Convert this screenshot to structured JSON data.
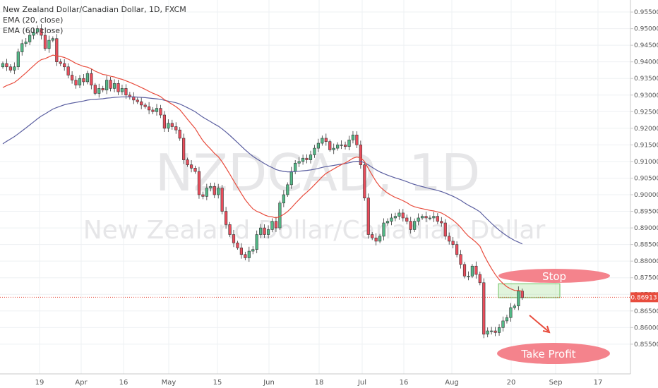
{
  "header": {
    "title": "New Zealand Dollar/Canadian Dollar, 1D, FXCM",
    "ema20_label": "EMA (20, close)",
    "ema60_label": "EMA (60, close)"
  },
  "watermark": {
    "symbol": "NZDCAD, 1D",
    "name": "New Zealand Dollar/Canadian Dollar"
  },
  "annotations": {
    "stop_label": "Stop",
    "take_profit_label": "Take Profit"
  },
  "current_price_label": "0.86913",
  "colors": {
    "up": "#53b987",
    "down": "#eb4d5c",
    "ema20": "#e84c3d",
    "ema60": "#5b5fa0",
    "annotation": "#f4838c",
    "zone": "#a8df9a"
  },
  "chart_data": {
    "type": "candlestick",
    "y_ticks": [
      "0.95500",
      "0.95000",
      "0.94500",
      "0.94000",
      "0.93500",
      "0.93000",
      "0.92500",
      "0.92000",
      "0.91500",
      "0.91000",
      "0.90500",
      "0.90000",
      "0.89500",
      "0.89000",
      "0.88500",
      "0.88000",
      "0.87500",
      "0.87000",
      "0.86500",
      "0.86000",
      "0.85500"
    ],
    "ylim": [
      0.852,
      0.9565
    ],
    "x_ticks": [
      "19",
      "Apr",
      "16",
      "May",
      "15",
      "Jun",
      "18",
      "Jul",
      "16",
      "Aug",
      "20",
      "Sep",
      "17"
    ],
    "current_price": 0.86913,
    "stop_zone": [
      0.869,
      0.8732
    ],
    "closes": [
      0.9395,
      0.9385,
      0.9375,
      0.9385,
      0.943,
      0.9455,
      0.946,
      0.948,
      0.949,
      0.95,
      0.948,
      0.944,
      0.9465,
      0.947,
      0.94,
      0.9395,
      0.9385,
      0.936,
      0.9345,
      0.933,
      0.935,
      0.934,
      0.9365,
      0.933,
      0.9305,
      0.932,
      0.9315,
      0.9345,
      0.932,
      0.9335,
      0.931,
      0.932,
      0.93,
      0.9295,
      0.9285,
      0.928,
      0.927,
      0.9265,
      0.9255,
      0.925,
      0.926,
      0.924,
      0.92,
      0.9215,
      0.9205,
      0.9195,
      0.917,
      0.9105,
      0.909,
      0.908,
      0.907,
      0.9,
      0.8995,
      0.902,
      0.9025,
      0.9,
      0.902,
      0.895,
      0.891,
      0.888,
      0.8855,
      0.884,
      0.882,
      0.881,
      0.883,
      0.8835,
      0.888,
      0.89,
      0.888,
      0.8895,
      0.892,
      0.89,
      0.8975,
      0.9,
      0.903,
      0.907,
      0.9095,
      0.91,
      0.911,
      0.9105,
      0.912,
      0.914,
      0.9155,
      0.917,
      0.916,
      0.9135,
      0.914,
      0.915,
      0.915,
      0.9145,
      0.9165,
      0.918,
      0.915,
      0.909,
      0.899,
      0.888,
      0.887,
      0.886,
      0.8875,
      0.8915,
      0.892,
      0.893,
      0.8935,
      0.8945,
      0.893,
      0.892,
      0.8895,
      0.892,
      0.893,
      0.8935,
      0.893,
      0.893,
      0.8935,
      0.892,
      0.8915,
      0.8875,
      0.886,
      0.885,
      0.882,
      0.879,
      0.8755,
      0.8755,
      0.8785,
      0.876,
      0.8735,
      0.858,
      0.859,
      0.859,
      0.8585,
      0.86,
      0.862,
      0.863,
      0.866,
      0.8665,
      0.871,
      0.869
    ]
  }
}
